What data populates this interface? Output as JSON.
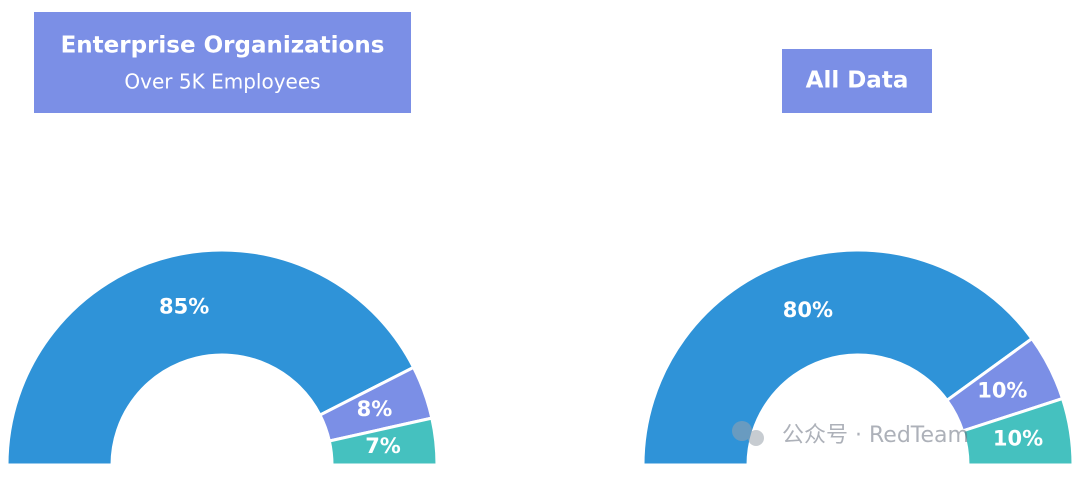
{
  "chart_data": [
    {
      "type": "pie",
      "title": "Enterprise Organizations",
      "subtitle": "Over 5K Employees",
      "values": [
        85,
        8,
        7
      ],
      "value_labels": [
        "85%",
        "8%",
        "7%"
      ],
      "colors": [
        "#2f93d8",
        "#7b8fe6",
        "#45c1bf"
      ]
    },
    {
      "type": "pie",
      "title": "All Data",
      "values": [
        80,
        10,
        10
      ],
      "value_labels": [
        "80%",
        "10%",
        "10%"
      ],
      "colors": [
        "#2f93d8",
        "#7b8fe6",
        "#45c1bf"
      ]
    }
  ],
  "watermark": "公众号 · RedTeam"
}
